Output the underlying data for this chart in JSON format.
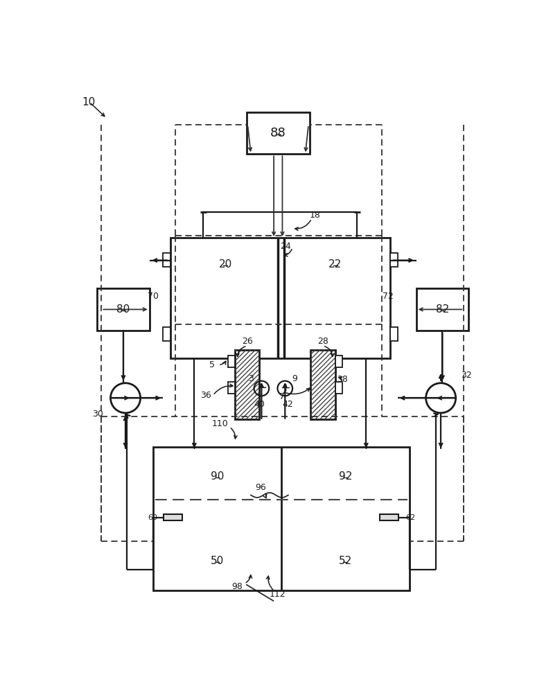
{
  "bg_color": "#ffffff",
  "line_color": "#1a1a1a",
  "figsize": [
    7.98,
    10.0
  ],
  "dpi": 100
}
